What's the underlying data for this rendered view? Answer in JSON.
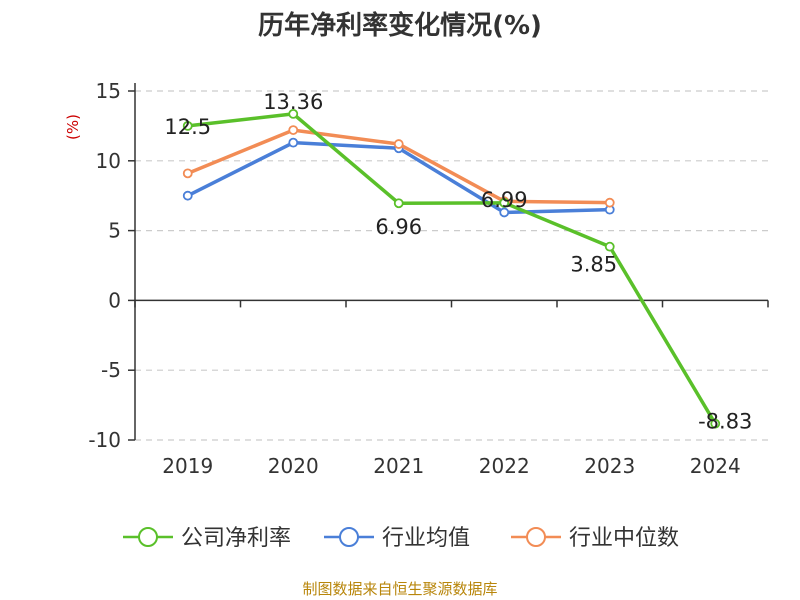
{
  "chart_data": {
    "type": "line",
    "title": "历年净利率变化情况(%)",
    "ylabel": "(%)",
    "categories": [
      "2019",
      "2020",
      "2021",
      "2022",
      "2023",
      "2024"
    ],
    "ylim": [
      -10,
      15
    ],
    "yticks": [
      "15",
      "10",
      "5",
      "0",
      "-5",
      "-10"
    ],
    "grid": true,
    "legend_position": "bottom",
    "series": [
      {
        "name": "公司净利率",
        "color": "#5ac02a",
        "values": [
          12.5,
          13.36,
          6.96,
          6.99,
          3.85,
          -8.83
        ],
        "labels": [
          "12.5",
          "13.36",
          "6.96",
          "6.99",
          "3.85",
          "-8.83"
        ]
      },
      {
        "name": "行业均值",
        "color": "#4a7fd8",
        "values": [
          7.5,
          11.3,
          10.9,
          6.3,
          6.5,
          null
        ]
      },
      {
        "name": "行业中位数",
        "color": "#f28c55",
        "values": [
          9.1,
          12.2,
          11.2,
          7.1,
          7.0,
          null
        ]
      }
    ]
  },
  "source": "制图数据来自恒生聚源数据库"
}
